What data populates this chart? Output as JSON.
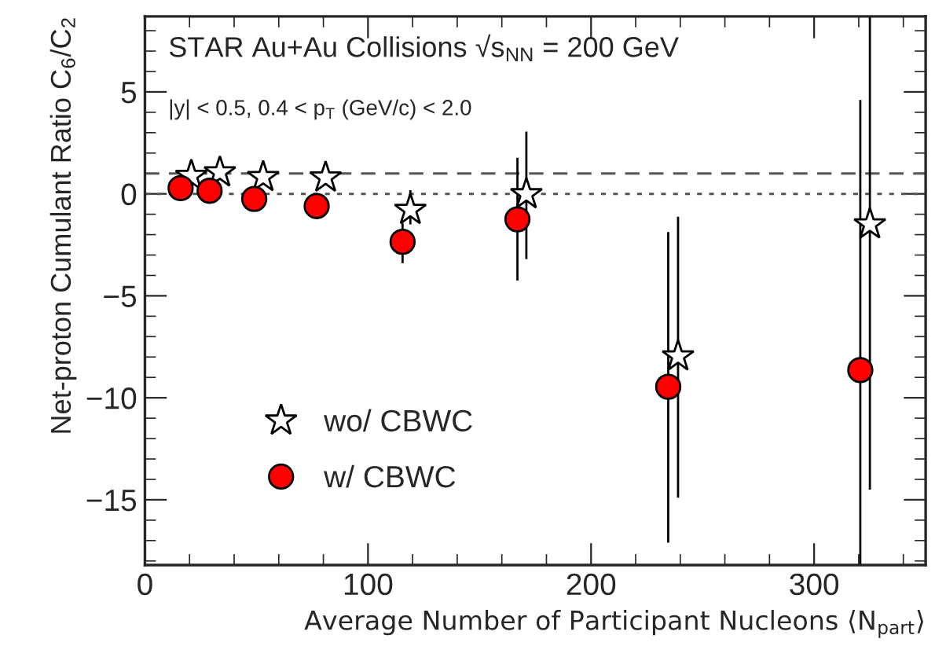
{
  "chart_data": {
    "type": "scatter",
    "title": "STAR Au+Au Collisions √s$_{NN}$ = 200 GeV",
    "subtitle": "|y| < 0.5, 0.4 < p$_{T}$ (GeV/c) < 2.0",
    "xlabel": "Average Number of Participant Nucleons ⟨N$_{part}$⟩",
    "ylabel": "Net-proton Cumulant Ratio C$_{6}$/C$_{2}$",
    "series": [
      {
        "name": "wo/ CBWC",
        "color": "#ffffff",
        "marker": "star",
        "x": [
          20.8,
          33.6,
          53,
          81,
          119,
          171,
          239,
          325
        ],
        "values": [
          0.88,
          1.05,
          0.82,
          0.8,
          -0.79,
          -0.02,
          -7.97,
          -1.5
        ],
        "errors": [
          null,
          null,
          null,
          null,
          [
            -1.5,
            0.18
          ],
          [
            -3.2,
            3.05
          ],
          [
            -14.9,
            -1.12
          ],
          [
            -14.5,
            8.7
          ]
        ]
      },
      {
        "name": "w/ CBWC",
        "color": "#ff0000",
        "marker": "circle",
        "x": [
          16,
          29,
          49,
          77,
          115.5,
          167,
          234.6,
          320.7
        ],
        "values": [
          0.28,
          0.15,
          -0.25,
          -0.6,
          -2.35,
          -1.25,
          -9.46,
          -8.64
        ],
        "errors": [
          null,
          null,
          null,
          null,
          [
            -3.4,
            -1.45
          ],
          [
            -4.25,
            1.77
          ],
          [
            -17.1,
            -1.87
          ],
          [
            -18.2,
            4.6
          ]
        ]
      }
    ],
    "xlim": [
      0,
      350
    ],
    "xticks": [
      0,
      100,
      200,
      300
    ],
    "ylim": [
      -18.2,
      8.7
    ],
    "yticks": [
      -15,
      -10,
      -5,
      0,
      5
    ],
    "ref_lines": [
      {
        "axis": "y",
        "value": 1,
        "line_style": "dashed",
        "color": "#555555"
      },
      {
        "axis": "y",
        "value": 0,
        "line_style": "dotted",
        "color": "#555555"
      }
    ],
    "grid": false,
    "legend": "bottom left"
  }
}
